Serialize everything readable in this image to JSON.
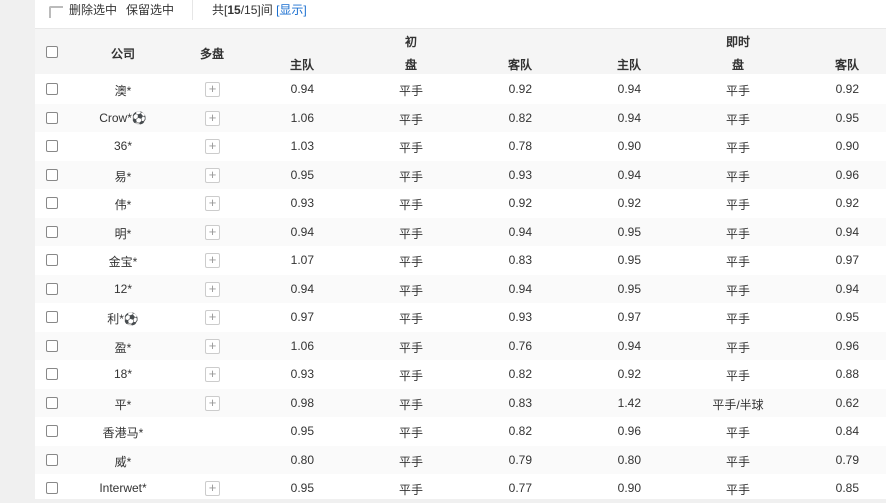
{
  "toolbar": {
    "delete_selected": "删除选中",
    "keep_selected": "保留选中",
    "count_prefix": "共[",
    "count_shown": "15",
    "count_suffix": "/15]间",
    "show_link": "[显示]"
  },
  "header": {
    "company": "公司",
    "multi": "多盘",
    "initial": "初",
    "live": "即时",
    "home": "主队",
    "line": "盘",
    "away": "客队"
  },
  "rows": [
    {
      "company": "澳*",
      "plus": true,
      "i_home": "0.94",
      "i_line": "平手",
      "i_away": "0.92",
      "l_home": "0.94",
      "l_line": "平手",
      "l_away": "0.92"
    },
    {
      "company": "Crow*⚽",
      "plus": true,
      "i_home": "1.06",
      "i_line": "平手",
      "i_away": "0.82",
      "l_home": "0.94",
      "l_line": "平手",
      "l_away": "0.95"
    },
    {
      "company": "36*",
      "plus": true,
      "i_home": "1.03",
      "i_line": "平手",
      "i_away": "0.78",
      "l_home": "0.90",
      "l_line": "平手",
      "l_away": "0.90"
    },
    {
      "company": "易*",
      "plus": true,
      "i_home": "0.95",
      "i_line": "平手",
      "i_away": "0.93",
      "l_home": "0.94",
      "l_line": "平手",
      "l_away": "0.96"
    },
    {
      "company": "伟*",
      "plus": true,
      "i_home": "0.93",
      "i_line": "平手",
      "i_away": "0.92",
      "l_home": "0.92",
      "l_line": "平手",
      "l_away": "0.92"
    },
    {
      "company": "明*",
      "plus": true,
      "i_home": "0.94",
      "i_line": "平手",
      "i_away": "0.94",
      "l_home": "0.95",
      "l_line": "平手",
      "l_away": "0.94"
    },
    {
      "company": "金宝*",
      "plus": true,
      "i_home": "1.07",
      "i_line": "平手",
      "i_away": "0.83",
      "l_home": "0.95",
      "l_line": "平手",
      "l_away": "0.97"
    },
    {
      "company": "12*",
      "plus": true,
      "i_home": "0.94",
      "i_line": "平手",
      "i_away": "0.94",
      "l_home": "0.95",
      "l_line": "平手",
      "l_away": "0.94"
    },
    {
      "company": "利*⚽",
      "plus": true,
      "i_home": "0.97",
      "i_line": "平手",
      "i_away": "0.93",
      "l_home": "0.97",
      "l_line": "平手",
      "l_away": "0.95"
    },
    {
      "company": "盈*",
      "plus": true,
      "i_home": "1.06",
      "i_line": "平手",
      "i_away": "0.76",
      "l_home": "0.94",
      "l_line": "平手",
      "l_away": "0.96"
    },
    {
      "company": "18*",
      "plus": true,
      "i_home": "0.93",
      "i_line": "平手",
      "i_away": "0.82",
      "l_home": "0.92",
      "l_line": "平手",
      "l_away": "0.88"
    },
    {
      "company": "平*",
      "plus": true,
      "i_home": "0.98",
      "i_line": "平手",
      "i_away": "0.83",
      "l_home": "1.42",
      "l_line": "平手/半球",
      "l_away": "0.62"
    },
    {
      "company": "香港马*",
      "plus": false,
      "i_home": "0.95",
      "i_line": "平手",
      "i_away": "0.82",
      "l_home": "0.96",
      "l_line": "平手",
      "l_away": "0.84"
    },
    {
      "company": "威*",
      "plus": false,
      "i_home": "0.80",
      "i_line": "平手",
      "i_away": "0.79",
      "l_home": "0.80",
      "l_line": "平手",
      "l_away": "0.79"
    },
    {
      "company": "Interwet*",
      "plus": true,
      "i_home": "0.95",
      "i_line": "平手",
      "i_away": "0.77",
      "l_home": "0.90",
      "l_line": "平手",
      "l_away": "0.85"
    }
  ]
}
